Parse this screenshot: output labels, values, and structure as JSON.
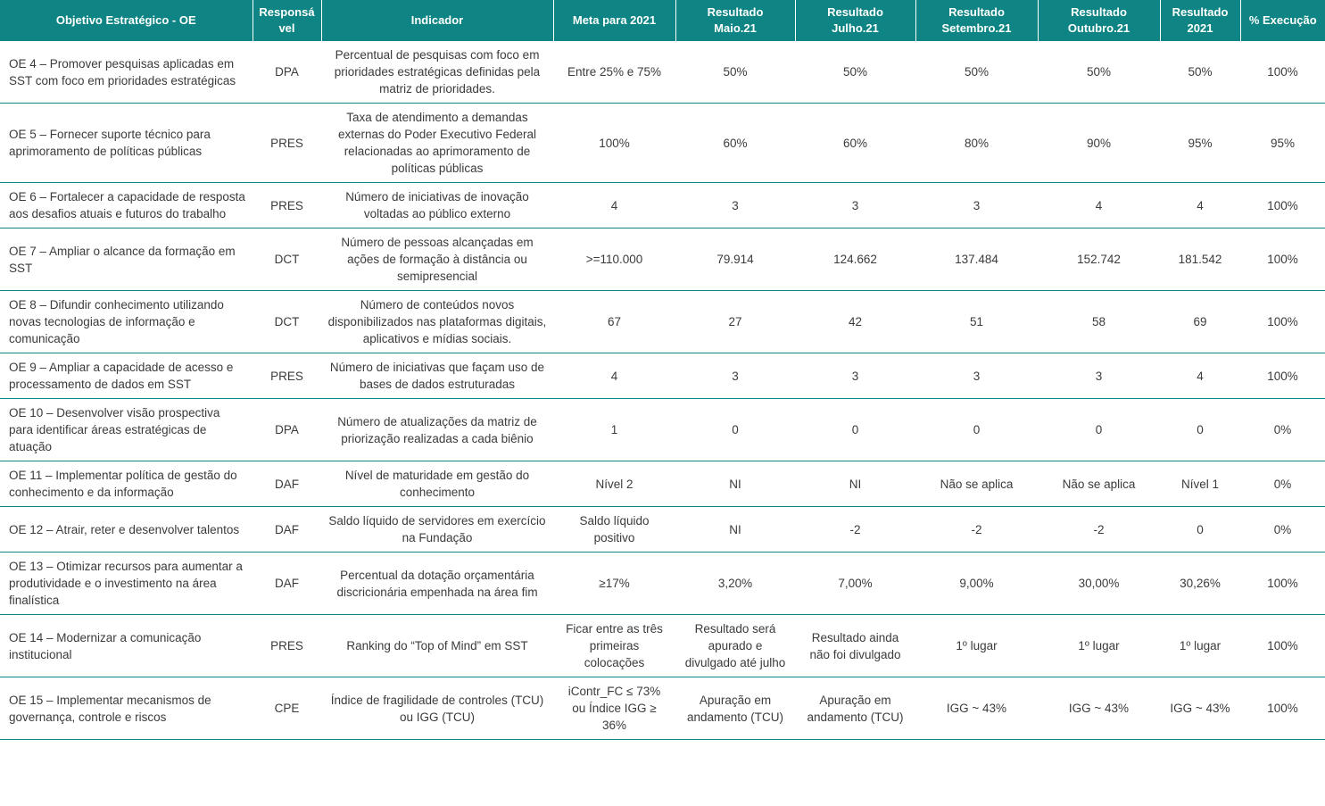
{
  "colors": {
    "header_bg": "#0e8584",
    "header_text": "#ffffff",
    "row_border": "#0e8584",
    "body_text": "#3b3b3b"
  },
  "table": {
    "columns": [
      "Objetivo Estratégico - OE",
      "Responsável",
      "Indicador",
      "Meta para 2021",
      "Resultado\nMaio.21",
      "Resultado\nJulho.21",
      "Resultado\nSetembro.21",
      "Resultado\nOutubro.21",
      "Resultado\n2021",
      "% Execução"
    ],
    "rows": [
      {
        "cells": [
          "OE 4 – Promover pesquisas aplicadas em SST com foco em prioridades estratégicas",
          "DPA",
          "Percentual de pesquisas com foco em prioridades estratégicas definidas pela matriz de prioridades.",
          "Entre 25% e 75%",
          "50%",
          "50%",
          "50%",
          "50%",
          "50%",
          "100%"
        ]
      },
      {
        "cells": [
          "OE 5 – Fornecer suporte técnico para aprimoramento de políticas públicas",
          "PRES",
          "Taxa de atendimento a demandas externas do Poder Executivo Federal relacionadas ao aprimoramento de políticas públicas",
          "100%",
          "60%",
          "60%",
          "80%",
          "90%",
          "95%",
          "95%"
        ]
      },
      {
        "cells": [
          "OE 6 – Fortalecer a capacidade de resposta aos desafios atuais e futuros do trabalho",
          "PRES",
          "Número de iniciativas de inovação voltadas ao público externo",
          "4",
          "3",
          "3",
          "3",
          "4",
          "4",
          "100%"
        ]
      },
      {
        "cells": [
          "OE 7 – Ampliar o alcance da formação em SST",
          "DCT",
          "Número de pessoas alcançadas em ações de formação à distância ou semipresencial",
          ">=110.000",
          "79.914",
          "124.662",
          "137.484",
          "152.742",
          "181.542",
          "100%"
        ]
      },
      {
        "cells": [
          "OE 8 – Difundir conhecimento utilizando novas tecnologias de informação e comunicação",
          "DCT",
          "Número de conteúdos novos disponibilizados nas plataformas digitais, aplicativos e mídias sociais.",
          "67",
          "27",
          "42",
          "51",
          "58",
          "69",
          "100%"
        ]
      },
      {
        "cells": [
          "OE 9 – Ampliar a capacidade de acesso e processamento de dados em SST",
          "PRES",
          "Número de iniciativas que façam uso de bases de dados estruturadas",
          "4",
          "3",
          "3",
          "3",
          "3",
          "4",
          "100%"
        ]
      },
      {
        "cells": [
          "OE 10 – Desenvolver visão prospectiva para identificar áreas estratégicas de atuação",
          "DPA",
          "Número de atualizações da matriz de priorização realizadas a cada biênio",
          "1",
          "0",
          "0",
          "0",
          "0",
          "0",
          "0%"
        ]
      },
      {
        "cells": [
          "OE 11 – Implementar política de gestão do conhecimento e da informação",
          "DAF",
          "Nível de maturidade em gestão do conhecimento",
          "Nível 2",
          "NI",
          "NI",
          "Não se aplica",
          "Não se aplica",
          "Nível 1",
          "0%"
        ]
      },
      {
        "cells": [
          "OE 12 – Atrair, reter e desenvolver talentos",
          "DAF",
          "Saldo líquido de servidores em exercício na Fundação",
          "Saldo líquido positivo",
          "NI",
          "-2",
          "-2",
          "-2",
          "0",
          "0%"
        ]
      },
      {
        "cells": [
          "OE 13 – Otimizar recursos para aumentar a produtividade e o investimento na área finalística",
          "DAF",
          "Percentual da dotação orçamentária discricionária empenhada na área fim",
          "≥17%",
          "3,20%",
          "7,00%",
          "9,00%",
          "30,00%",
          "30,26%",
          "100%"
        ]
      },
      {
        "cells": [
          "OE 14 – Modernizar a comunicação institucional",
          "PRES",
          "Ranking do “Top of Mind” em SST",
          "Ficar entre as três primeiras colocações",
          "Resultado será apurado e divulgado até julho",
          "Resultado ainda não foi divulgado",
          "1º lugar",
          "1º lugar",
          "1º lugar",
          "100%"
        ]
      },
      {
        "cells": [
          "OE 15 – Implementar mecanismos de governança, controle e riscos",
          "CPE",
          "Índice de fragilidade de controles (TCU)\nou IGG (TCU)",
          "iContr_FC ≤ 73%\nou Índice IGG ≥ 36%",
          "Apuração em andamento (TCU)",
          "Apuração em andamento (TCU)",
          "IGG ~ 43%",
          "IGG ~ 43%",
          "IGG ~ 43%",
          "100%"
        ]
      }
    ]
  }
}
